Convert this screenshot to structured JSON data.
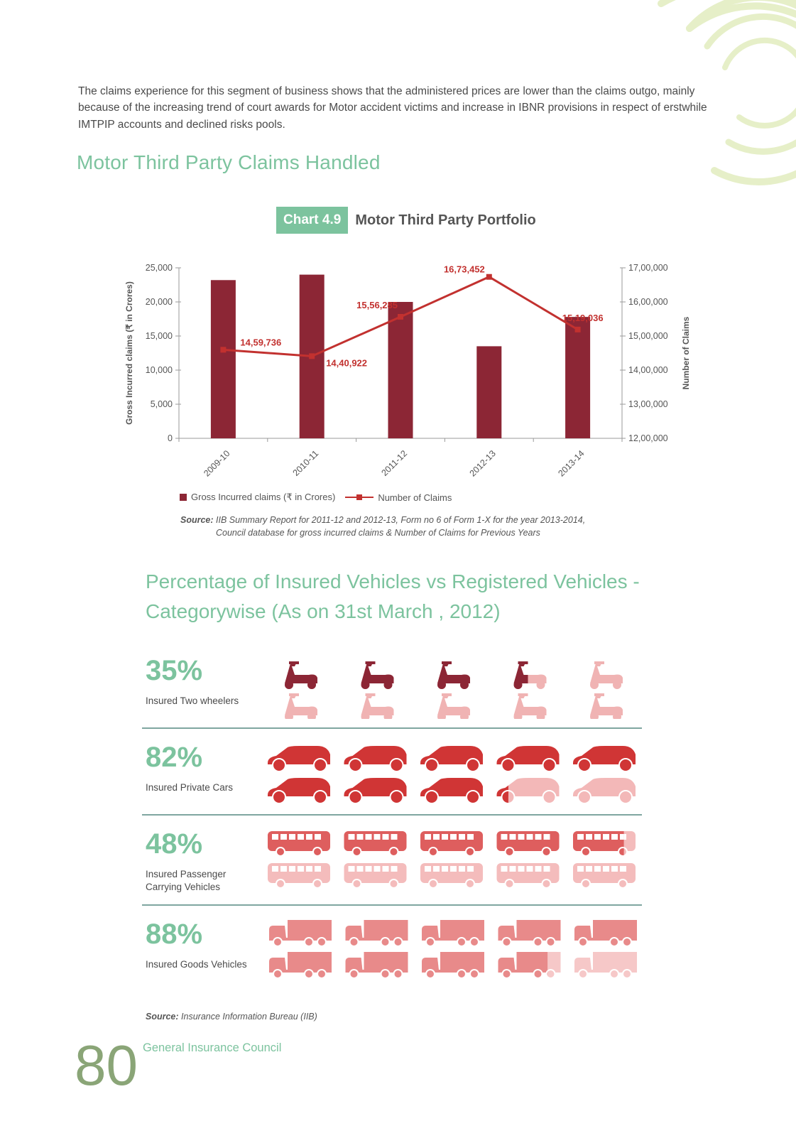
{
  "intro_text": "The claims experience for this segment of business shows that the administered prices are lower than the claims outgo, mainly because of the increasing trend of court awards for Motor accident victims and increase in IBNR provisions in respect of erstwhile IMTPIP accounts and declined risks pools.",
  "section_title": "Motor Third Party Claims Handled",
  "chart_tag": "Chart 4.9",
  "chart_heading": "Motor Third Party Portfolio",
  "legend": {
    "bar": "Gross Incurred claims (₹ in Crores)",
    "line": "Number of Claims"
  },
  "source1": {
    "label": "Source:",
    "line1": "IIB Summary Report for 2011-12 and 2012-13, Form no 6 of Form 1-X for the year 2013-2014,",
    "line2": "Council database for gross incurred claims & Number of Claims for Previous Years"
  },
  "pct_section_title": "Percentage of Insured Vehicles vs Registered Vehicles - Categorywise (As on 31st March , 2012)",
  "vehicle_rows": [
    {
      "percent": "35%",
      "caption": "Insured Two wheelers",
      "value": 35,
      "icon": "scooter-icon",
      "color": "#8c2635",
      "light": "#f0b3b3"
    },
    {
      "percent": "82%",
      "caption": "Insured Private Cars",
      "value": 82,
      "icon": "car-icon",
      "color": "#d03535",
      "light": "#f3b8b8"
    },
    {
      "percent": "48%",
      "caption": "Insured Passenger Carrying Vehicles",
      "value": 48,
      "icon": "bus-icon",
      "color": "#de5e5e",
      "light": "#f4bcbc"
    },
    {
      "percent": "88%",
      "caption": "Insured Goods Vehicles",
      "value": 88,
      "icon": "truck-icon",
      "color": "#e88a8a",
      "light": "#f6c8c8"
    }
  ],
  "source2": {
    "label": "Source:",
    "text": "Insurance Information Bureau (IIB)"
  },
  "page_number": "80",
  "footer_title": "General Insurance Council",
  "chart_data": {
    "type": "bar",
    "categories": [
      "2009-10",
      "2010-11",
      "2011-12",
      "2012-13",
      "2013-14"
    ],
    "series": [
      {
        "name": "Gross Incurred claims (₹ in Crores)",
        "type": "bar",
        "axis": "left",
        "values": [
          23200,
          24000,
          20000,
          13500,
          17800
        ],
        "color": "#8c2635"
      },
      {
        "name": "Number of Claims",
        "type": "line",
        "axis": "right",
        "values": [
          1459736,
          1440922,
          1556285,
          1673452,
          1519036
        ],
        "labels": [
          "14,59,736",
          "14,40,922",
          "15,56,285",
          "16,73,452",
          "15,19,036"
        ],
        "color": "#c2312f"
      }
    ],
    "ylabel": "Gross Incurred claims (₹ in Crores)",
    "y2label": "Number of Claims",
    "ylim": [
      0,
      25000
    ],
    "y2lim": [
      1200000,
      1700000
    ],
    "yticks": [
      "0",
      "5,000",
      "10,000",
      "15,000",
      "20,000",
      "25,000"
    ],
    "y2ticks": [
      "12,00,000",
      "13,00,000",
      "14,00,000",
      "15,00,000",
      "16,00,000",
      "17,00,000"
    ],
    "grid": false
  }
}
